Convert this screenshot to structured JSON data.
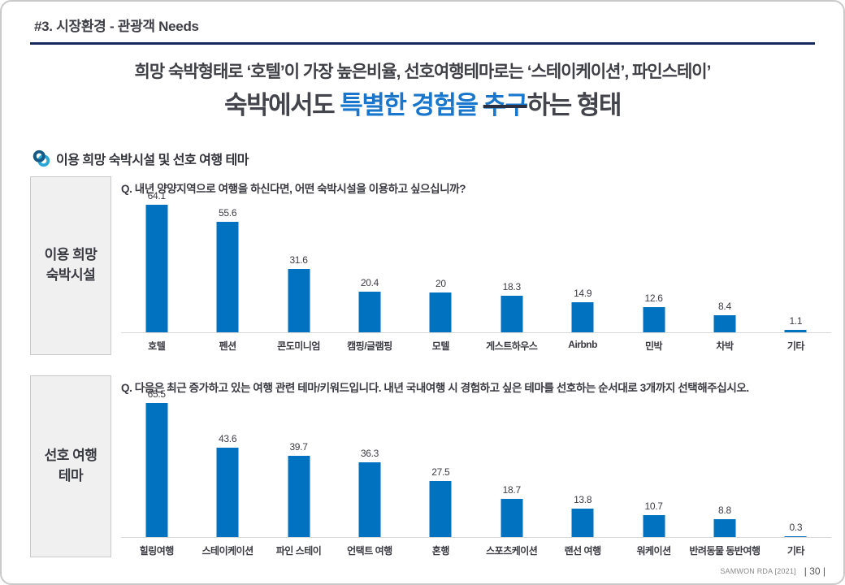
{
  "header": {
    "title": "#3. 시장환경 - 관광객 Needs"
  },
  "headline": {
    "subtitle": "희망 숙박형태로 ‘호텔’이 가장 높은비율, 선호여행테마로는 ‘스테이케이션’, 파인스테이’",
    "title_part1": "숙박에서도 ",
    "title_highlight": "특별한 경험을 ",
    "title_highlight_struck": "추구",
    "title_part2": "하는 형태"
  },
  "section": {
    "title": "이용 희망 숙박시설 및 선호 여행 테마"
  },
  "colors": {
    "bar": "#0072bf",
    "accent_blue": "#1877cc",
    "header_rule_navy": "#16295f",
    "panel_box_bg": "#f0f0f0"
  },
  "chart_data": [
    {
      "type": "bar",
      "panel_label_lines": [
        "이용 희망",
        "숙박시설"
      ],
      "question": "Q. 내년 양양지역으로 여행을 하신다면, 어떤 숙박시설을 이용하고 싶으십니까?",
      "categories": [
        "호텔",
        "펜션",
        "콘도미니엄",
        "캠핑/글램핑",
        "모텔",
        "게스트하우스",
        "Airbnb",
        "민박",
        "차박",
        "기타"
      ],
      "values": [
        64.1,
        55.6,
        31.6,
        20.4,
        20,
        18.3,
        14.9,
        12.6,
        8.4,
        1.1
      ],
      "title": "이용 희망 숙박시설",
      "xlabel": "",
      "ylabel": "",
      "ylim": [
        0,
        66
      ],
      "grid": false,
      "legend": "none",
      "bar_color": "#0072bf"
    },
    {
      "type": "bar",
      "panel_label_lines": [
        "선호 여행",
        "테마"
      ],
      "question": "Q. 다음은 최근 증가하고 있는 여행 관련 테마/키워드입니다. 내년 국내여행 시 경험하고 싶은 테마를 선호하는 순서대로 3개까지 선택해주십시오.",
      "categories": [
        "힐링여행",
        "스테이케이션",
        "파인 스테이",
        "언택트 여행",
        "혼행",
        "스포츠케이션",
        "랜선 여행",
        "워케이션",
        "반려동물 동반여행",
        "기타"
      ],
      "values": [
        65.5,
        43.6,
        39.7,
        36.3,
        27.5,
        18.7,
        13.8,
        10.7,
        8.8,
        0.3
      ],
      "title": "선호 여행 테마",
      "xlabel": "",
      "ylabel": "",
      "ylim": [
        0,
        67
      ],
      "grid": false,
      "legend": "none",
      "bar_color": "#0072bf"
    }
  ],
  "footer": {
    "source": "SAMWON RDA [2021]",
    "page_number": "| 30 |"
  }
}
